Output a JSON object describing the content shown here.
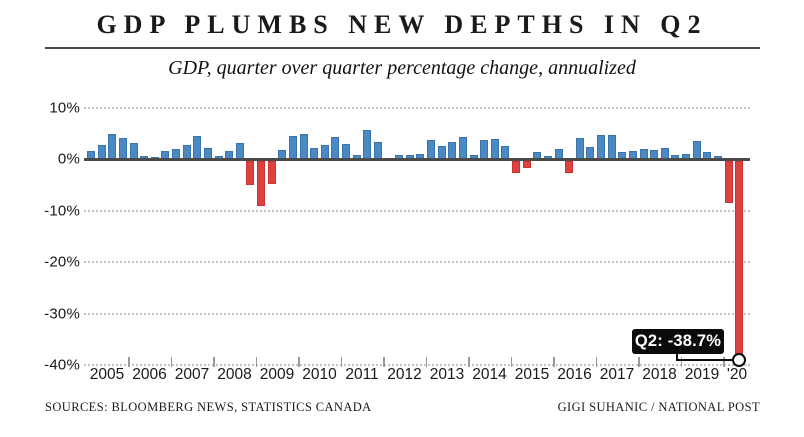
{
  "header": {
    "title": "GDP PLUMBS NEW DEPTHS IN Q2",
    "subtitle": "GDP, quarter over quarter percentage change, annualized"
  },
  "annotation": {
    "label": "Q2: -38.7%",
    "points_to": "2020 Q2"
  },
  "footer": {
    "sources": "SOURCES: BLOOMBERG NEWS, STATISTICS CANADA",
    "credit": "GIGI SUHANIC / NATIONAL POST"
  },
  "chart_data": {
    "type": "bar",
    "title": "GDP PLUMBS NEW DEPTHS IN Q2",
    "subtitle": "GDP, quarter over quarter percentage change, annualized",
    "unit": "%",
    "ylim": [
      -40,
      10
    ],
    "grid": "dotted horizontal",
    "y_tick_values": [
      10,
      0,
      -10,
      -20,
      -30,
      -40
    ],
    "y_tick_labels": [
      "10%",
      "0%",
      "-10%",
      "-20%",
      "-30%",
      "-40%"
    ],
    "x_labels": [
      "2005",
      "2006",
      "2007",
      "2008",
      "2009",
      "2010",
      "2011",
      "2012",
      "2013",
      "2014",
      "2015",
      "2016",
      "2017",
      "2018",
      "2019",
      "'20"
    ],
    "quarters_per_year": [
      4,
      4,
      4,
      4,
      4,
      4,
      4,
      4,
      4,
      4,
      4,
      4,
      4,
      4,
      4,
      2
    ],
    "categories": [
      "2005Q1",
      "2005Q2",
      "2005Q3",
      "2005Q4",
      "2006Q1",
      "2006Q2",
      "2006Q3",
      "2006Q4",
      "2007Q1",
      "2007Q2",
      "2007Q3",
      "2007Q4",
      "2008Q1",
      "2008Q2",
      "2008Q3",
      "2008Q4",
      "2009Q1",
      "2009Q2",
      "2009Q3",
      "2009Q4",
      "2010Q1",
      "2010Q2",
      "2010Q3",
      "2010Q4",
      "2011Q1",
      "2011Q2",
      "2011Q3",
      "2011Q4",
      "2012Q1",
      "2012Q2",
      "2012Q3",
      "2012Q4",
      "2013Q1",
      "2013Q2",
      "2013Q3",
      "2013Q4",
      "2014Q1",
      "2014Q2",
      "2014Q3",
      "2014Q4",
      "2015Q1",
      "2015Q2",
      "2015Q3",
      "2015Q4",
      "2016Q1",
      "2016Q2",
      "2016Q3",
      "2016Q4",
      "2017Q1",
      "2017Q2",
      "2017Q3",
      "2017Q4",
      "2018Q1",
      "2018Q2",
      "2018Q3",
      "2018Q4",
      "2019Q1",
      "2019Q2",
      "2019Q3",
      "2019Q4",
      "2020Q1",
      "2020Q2"
    ],
    "values": [
      1.6,
      2.8,
      4.9,
      4.0,
      3.2,
      0.6,
      0.4,
      1.6,
      2.0,
      2.8,
      4.5,
      2.1,
      0.5,
      1.6,
      3.2,
      -4.7,
      -8.9,
      -4.6,
      1.8,
      4.4,
      4.8,
      2.2,
      2.7,
      4.3,
      3.0,
      0.7,
      5.6,
      3.3,
      0.2,
      0.8,
      0.7,
      1.0,
      3.6,
      2.5,
      3.3,
      4.3,
      0.8,
      3.6,
      3.9,
      2.6,
      -2.5,
      -1.4,
      1.4,
      0.5,
      2.0,
      -2.4,
      4.1,
      2.3,
      4.6,
      4.7,
      1.4,
      1.6,
      2.0,
      1.7,
      2.1,
      0.8,
      1.0,
      3.4,
      1.3,
      0.5,
      -8.2,
      -38.7
    ],
    "colors": {
      "positive": "#4a89c4",
      "negative": "#e0413f",
      "zero_line": "#4a4a4a"
    },
    "annotation": {
      "text": "Q2: -38.7%",
      "target_category": "2020Q2",
      "target_value": -38.7
    },
    "legend": "none"
  }
}
